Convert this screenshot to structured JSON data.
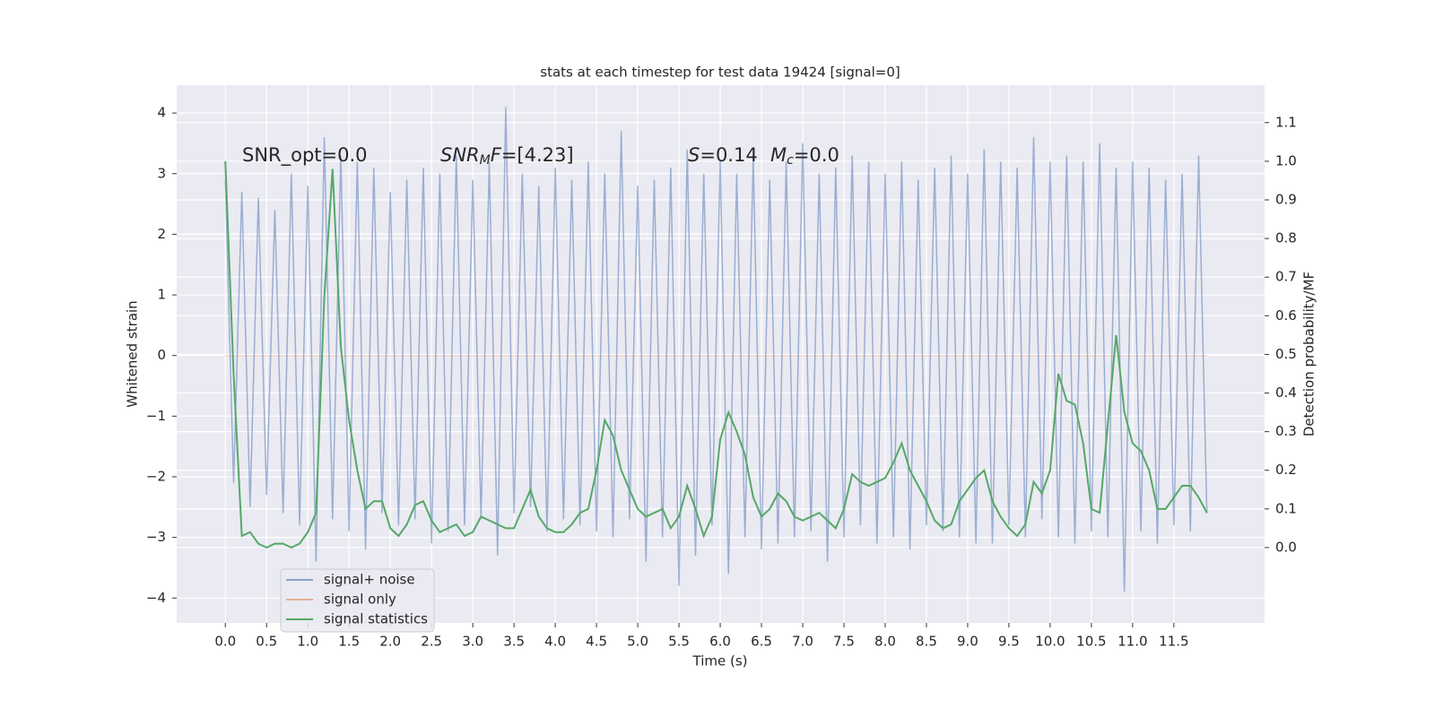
{
  "chart_data": {
    "type": "line",
    "title": "stats at each timestep for test data 19424 [signal=0]",
    "xlabel": "Time (s)",
    "ylabel": "Whitened strain",
    "y2label": "Detection probability/MF",
    "annotations": [
      [
        {
          "text": "SNR_opt=0.0"
        }
      ],
      [
        {
          "text": "SNR",
          "style": "italic"
        },
        {
          "text": "M",
          "style": "sub"
        },
        {
          "text": "F",
          "style": "italic"
        },
        {
          "text": "=[4.23]"
        }
      ],
      [
        {
          "text": "S",
          "style": "italic"
        },
        {
          "text": "=0.14"
        }
      ],
      [
        {
          "text": "M",
          "style": "italic"
        },
        {
          "text": "c",
          "style": "sub"
        },
        {
          "text": "=0.0"
        }
      ]
    ],
    "x": [
      0.0,
      0.1,
      0.2,
      0.3,
      0.4,
      0.5,
      0.6,
      0.7,
      0.8,
      0.9,
      1.0,
      1.1,
      1.2,
      1.3,
      1.4,
      1.5,
      1.6,
      1.7,
      1.8,
      1.9,
      2.0,
      2.1,
      2.2,
      2.3,
      2.4,
      2.5,
      2.6,
      2.7,
      2.8,
      2.9,
      3.0,
      3.1,
      3.2,
      3.3,
      3.4,
      3.5,
      3.6,
      3.7,
      3.8,
      3.9,
      4.0,
      4.1,
      4.2,
      4.3,
      4.4,
      4.5,
      4.6,
      4.7,
      4.8,
      4.9,
      5.0,
      5.1,
      5.2,
      5.3,
      5.4,
      5.5,
      5.6,
      5.7,
      5.8,
      5.9,
      6.0,
      6.1,
      6.2,
      6.3,
      6.4,
      6.5,
      6.6,
      6.7,
      6.8,
      6.9,
      7.0,
      7.1,
      7.2,
      7.3,
      7.4,
      7.5,
      7.6,
      7.7,
      7.8,
      7.9,
      8.0,
      8.1,
      8.2,
      8.3,
      8.4,
      8.5,
      8.6,
      8.7,
      8.8,
      8.9,
      9.0,
      9.1,
      9.2,
      9.3,
      9.4,
      9.5,
      9.6,
      9.7,
      9.8,
      9.9,
      10.0,
      10.1,
      10.2,
      10.3,
      10.4,
      10.5,
      10.6,
      10.7,
      10.8,
      10.9,
      11.0,
      11.1,
      11.2,
      11.3,
      11.4,
      11.5,
      11.6,
      11.7,
      11.8,
      11.9
    ],
    "series": [
      {
        "name": "signal+ noise",
        "color": "#4c72b0",
        "opacity": 0.5,
        "values": [
          2.9,
          -2.1,
          2.7,
          -2.5,
          2.6,
          -2.3,
          2.4,
          -2.6,
          3.0,
          -2.8,
          2.8,
          -3.4,
          3.6,
          -2.7,
          3.3,
          -2.9,
          3.2,
          -3.2,
          3.1,
          -2.6,
          2.7,
          -2.8,
          2.9,
          -2.7,
          3.1,
          -3.1,
          3.0,
          -2.9,
          3.3,
          -2.8,
          2.9,
          -2.7,
          3.2,
          -3.3,
          4.1,
          -2.6,
          3.0,
          -2.5,
          2.8,
          -2.9,
          3.1,
          -2.7,
          2.9,
          -2.8,
          3.2,
          -2.9,
          3.0,
          -3.0,
          3.7,
          -2.7,
          2.8,
          -3.4,
          2.9,
          -3.0,
          3.1,
          -3.8,
          3.4,
          -3.3,
          3.0,
          -2.8,
          3.2,
          -3.6,
          3.0,
          -3.0,
          3.3,
          -3.2,
          2.9,
          -3.1,
          3.2,
          -3.0,
          3.5,
          -2.9,
          3.0,
          -3.4,
          3.1,
          -3.0,
          3.3,
          -2.8,
          3.2,
          -3.1,
          3.0,
          -3.0,
          3.2,
          -3.2,
          2.9,
          -2.8,
          3.1,
          -2.9,
          3.3,
          -3.0,
          3.0,
          -3.1,
          3.4,
          -3.1,
          3.2,
          -2.8,
          3.1,
          -3.0,
          3.6,
          -2.7,
          3.2,
          -3.0,
          3.3,
          -3.1,
          3.2,
          -2.9,
          3.5,
          -3.0,
          3.1,
          -3.9,
          3.2,
          -2.9,
          3.1,
          -3.1,
          2.9,
          -2.8,
          3.0,
          -2.9,
          3.3,
          -2.6
        ]
      },
      {
        "name": "signal only",
        "color": "#dd8452",
        "opacity": 0.3,
        "values": [
          0,
          0,
          0,
          0,
          0,
          0,
          0,
          0,
          0,
          0,
          0,
          0,
          0,
          0,
          0,
          0,
          0,
          0,
          0,
          0,
          0,
          0,
          0,
          0,
          0,
          0,
          0,
          0,
          0,
          0,
          0,
          0,
          0,
          0,
          0,
          0,
          0,
          0,
          0,
          0,
          0,
          0,
          0,
          0,
          0,
          0,
          0,
          0,
          0,
          0,
          0,
          0,
          0,
          0,
          0,
          0,
          0,
          0,
          0,
          0,
          0,
          0,
          0,
          0,
          0,
          0,
          0,
          0,
          0,
          0,
          0,
          0,
          0,
          0,
          0,
          0,
          0,
          0,
          0,
          0,
          0,
          0,
          0,
          0,
          0,
          0,
          0,
          0,
          0,
          0,
          0,
          0,
          0,
          0,
          0,
          0,
          0,
          0,
          0,
          0,
          0,
          0,
          0,
          0,
          0,
          0,
          0,
          0,
          0,
          0,
          0,
          0,
          0,
          0,
          0,
          0,
          0,
          0,
          0,
          0
        ]
      },
      {
        "name": "signal statistics",
        "color": "#55a868",
        "opacity": 1,
        "axis": "y2",
        "values": [
          1.0,
          0.45,
          0.03,
          0.04,
          0.01,
          0.0,
          0.01,
          0.01,
          0.0,
          0.01,
          0.04,
          0.09,
          0.65,
          0.98,
          0.52,
          0.33,
          0.2,
          0.1,
          0.12,
          0.12,
          0.05,
          0.03,
          0.06,
          0.11,
          0.12,
          0.07,
          0.04,
          0.05,
          0.06,
          0.03,
          0.04,
          0.08,
          0.07,
          0.06,
          0.05,
          0.05,
          0.1,
          0.15,
          0.08,
          0.05,
          0.04,
          0.04,
          0.06,
          0.09,
          0.1,
          0.2,
          0.33,
          0.29,
          0.2,
          0.15,
          0.1,
          0.08,
          0.09,
          0.1,
          0.05,
          0.08,
          0.16,
          0.1,
          0.03,
          0.08,
          0.28,
          0.35,
          0.3,
          0.24,
          0.13,
          0.08,
          0.1,
          0.14,
          0.12,
          0.08,
          0.07,
          0.08,
          0.09,
          0.07,
          0.05,
          0.1,
          0.19,
          0.17,
          0.16,
          0.17,
          0.18,
          0.22,
          0.27,
          0.2,
          0.16,
          0.12,
          0.07,
          0.05,
          0.06,
          0.12,
          0.15,
          0.18,
          0.2,
          0.12,
          0.08,
          0.05,
          0.03,
          0.06,
          0.17,
          0.14,
          0.2,
          0.45,
          0.38,
          0.37,
          0.27,
          0.1,
          0.09,
          0.32,
          0.55,
          0.35,
          0.27,
          0.25,
          0.2,
          0.1,
          0.1,
          0.13,
          0.16,
          0.16,
          0.13,
          0.09
        ]
      }
    ],
    "xlim": [
      -0.59,
      12.6
    ],
    "ylim": [
      -4.41,
      4.46
    ],
    "y2lim": [
      -0.195,
      1.197
    ],
    "xticks": [
      {
        "value": 0,
        "label": "0.0"
      },
      0.5,
      {
        "value": 1,
        "label": "1.0"
      },
      1.5,
      {
        "value": 2,
        "label": "2.0"
      },
      2.5,
      {
        "value": 3,
        "label": "3.0"
      },
      3.5,
      {
        "value": 4,
        "label": "4.0"
      },
      4.5,
      {
        "value": 5,
        "label": "5.0"
      },
      5.5,
      {
        "value": 6,
        "label": "6.0"
      },
      6.5,
      {
        "value": 7,
        "label": "7.0"
      },
      7.5,
      {
        "value": 8,
        "label": "8.0"
      },
      8.5,
      {
        "value": 9,
        "label": "9.0"
      },
      9.5,
      {
        "value": 10,
        "label": "10.0"
      },
      10.5,
      {
        "value": 11,
        "label": "11.0"
      },
      11.5
    ],
    "yticks": [
      {
        "value": -4,
        "label": "−4"
      },
      {
        "value": -3,
        "label": "−3"
      },
      {
        "value": -2,
        "label": "−2"
      },
      {
        "value": -1,
        "label": "−1"
      },
      0,
      1,
      2,
      3,
      4
    ],
    "y2ticks": [
      {
        "value": 0,
        "label": "0.0"
      },
      0.1,
      0.2,
      0.3,
      0.4,
      0.5,
      0.6,
      0.7,
      0.8,
      0.9,
      {
        "value": 1,
        "label": "1.0"
      },
      1.1
    ],
    "grid": true,
    "legend": "lower left",
    "background": "#eaeaf2"
  }
}
